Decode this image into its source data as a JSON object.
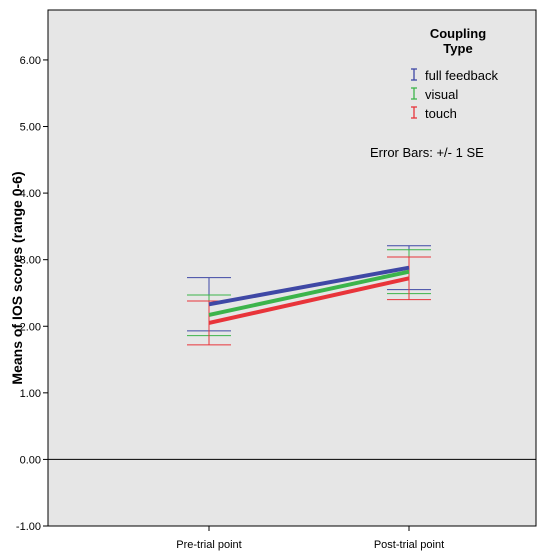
{
  "chart_data": {
    "type": "line",
    "categories": [
      "Pre-trial point",
      "Post-trial point"
    ],
    "ylabel": "Means of IOS scores (range 0-6)",
    "xlabel": "",
    "ylim": [
      -1.0,
      6.75
    ],
    "yticks": [
      "-1.00",
      "0.00",
      "1.00",
      "2.00",
      "3.00",
      "4.00",
      "5.00",
      "6.00"
    ],
    "ytick_values": [
      -1,
      0,
      1,
      2,
      3,
      4,
      5,
      6
    ],
    "reference_line": 0,
    "legend": {
      "title_line1": "Coupling",
      "title_line2": "Type",
      "placement": "top-right"
    },
    "annotation": "Error Bars: +/- 1 SE",
    "background": "#e6e6e6",
    "series": [
      {
        "name": "full feedback",
        "color": "#3f48a5",
        "values": [
          2.33,
          2.88
        ],
        "lower": [
          1.93,
          2.55
        ],
        "upper": [
          2.73,
          3.21
        ]
      },
      {
        "name": "visual",
        "color": "#3cb44b",
        "values": [
          2.17,
          2.82
        ],
        "lower": [
          1.86,
          2.49
        ],
        "upper": [
          2.47,
          3.15
        ]
      },
      {
        "name": "touch",
        "color": "#e8343a",
        "values": [
          2.05,
          2.72
        ],
        "lower": [
          1.72,
          2.4
        ],
        "upper": [
          2.38,
          3.04
        ]
      }
    ]
  }
}
